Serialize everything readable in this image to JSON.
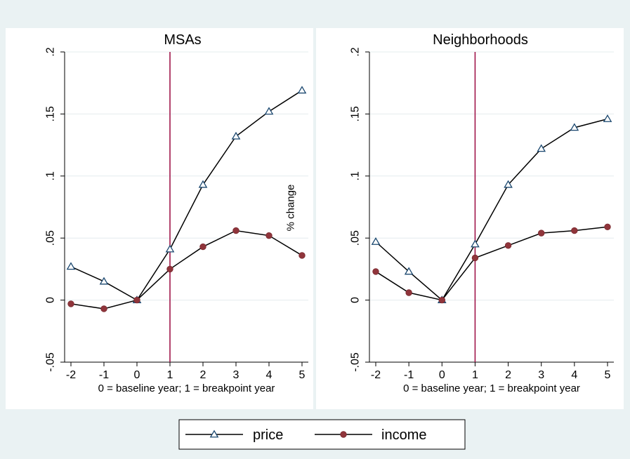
{
  "chart_data": {
    "type": "line",
    "ylabel": "% change",
    "xlabel": "0 = baseline year; 1 = breakpoint year",
    "ylim": [
      -0.05,
      0.2
    ],
    "xlim": [
      -2,
      5
    ],
    "yticks": [
      -0.05,
      0,
      0.05,
      0.1,
      0.15,
      0.2
    ],
    "ytick_labels": [
      "-.05",
      "0",
      ".05",
      ".1",
      ".15",
      ".2"
    ],
    "xticks": [
      -2,
      -1,
      0,
      1,
      2,
      3,
      4,
      5
    ],
    "xtick_labels": [
      "-2",
      "-1",
      "0",
      "1",
      "2",
      "3",
      "4",
      "5"
    ],
    "reference_line_x": 1,
    "grid": true,
    "legend": {
      "placement": "bottom-center",
      "entries": [
        {
          "name": "price",
          "marker": "hollow-triangle",
          "color": "#1a476f"
        },
        {
          "name": "income",
          "marker": "filled-circle",
          "color": "#90353b"
        }
      ]
    },
    "colors": {
      "reference_line": "#a0154a",
      "line": "#000000",
      "background": "#eaf2f3"
    },
    "panels": [
      {
        "title": "MSAs",
        "x": [
          -2,
          -1,
          0,
          1,
          2,
          3,
          4,
          5
        ],
        "series": [
          {
            "name": "price",
            "values": [
              0.027,
              0.015,
              0.0,
              0.041,
              0.093,
              0.132,
              0.152,
              0.169
            ]
          },
          {
            "name": "income",
            "values": [
              -0.003,
              -0.007,
              0.0,
              0.025,
              0.043,
              0.056,
              0.052,
              0.036
            ]
          }
        ]
      },
      {
        "title": "Neighborhoods",
        "x": [
          -2,
          -1,
          0,
          1,
          2,
          3,
          4,
          5
        ],
        "series": [
          {
            "name": "price",
            "values": [
              0.047,
              0.023,
              0.0,
              0.045,
              0.093,
              0.122,
              0.139,
              0.146
            ]
          },
          {
            "name": "income",
            "values": [
              0.023,
              0.006,
              0.0,
              0.034,
              0.044,
              0.054,
              0.056,
              0.059
            ]
          }
        ]
      }
    ]
  }
}
